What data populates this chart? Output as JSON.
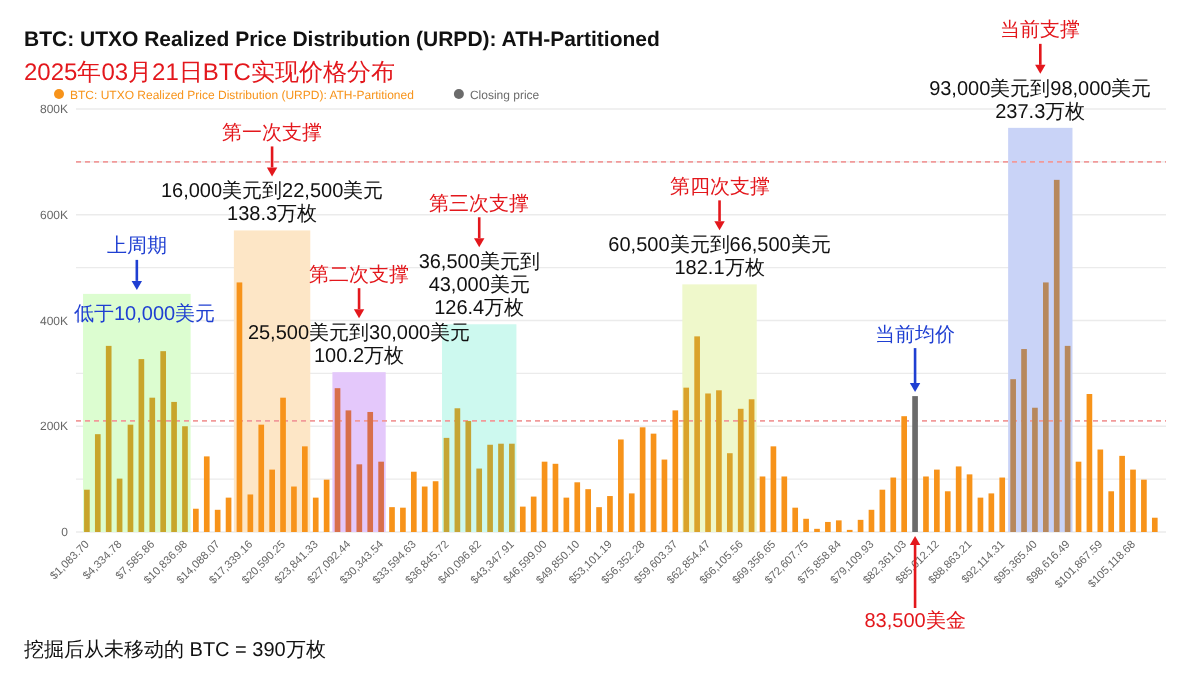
{
  "chart_data": {
    "type": "bar",
    "title": "BTC: UTXO Realized Price Distribution (URPD): ATH-Partitioned",
    "subtitle": "2025年03月21日BTC实现价格分布",
    "series": [
      {
        "name": "BTC: UTXO Realized Price Distribution (URPD): ATH-Partitioned",
        "color": "#f7931a",
        "x": [
          1084,
          2167,
          3251,
          4335,
          5418,
          6502,
          7586,
          8670,
          9753,
          10837,
          11921,
          13004,
          14088,
          15172,
          16255,
          17339,
          18423,
          19507,
          20590,
          21674,
          22758,
          23841,
          24925,
          26009,
          27092,
          28176,
          29260,
          30344,
          31427,
          32511,
          33595,
          34678,
          35762,
          36846,
          37929,
          39013,
          40097,
          41181,
          42264,
          43348,
          44432,
          45515,
          46599,
          47683,
          48766,
          49850,
          50934,
          52018,
          53101,
          54185,
          55269,
          56352,
          57436,
          58520,
          59603,
          60687,
          61771,
          62855,
          63938,
          65022,
          66106,
          67189,
          68273,
          69357,
          70441,
          71524,
          72608,
          73692,
          74775,
          75859,
          76943,
          78026,
          79110,
          80194,
          81277,
          82361,
          84529,
          85612,
          86696,
          87780,
          88863,
          89947,
          91031,
          92114,
          93198,
          94282,
          95365,
          96449,
          97533,
          98616,
          99700,
          100784,
          101868,
          102951,
          104035,
          105119,
          106202,
          107286
        ],
        "colors": [
          "#c8a52b",
          "#c8a52b",
          "#c8a52b",
          "#c8a52b",
          "#c8a52b",
          "#c8a52b",
          "#c8a52b",
          "#c8a52b",
          "#c8a52b",
          "#c8a52b",
          "#f7931a",
          "#f7931a",
          "#f7931a",
          "#f7931a",
          "#f7931a",
          "#f7931a",
          "#f7931a",
          "#f7931a",
          "#f7931a",
          "#f7931a",
          "#f7931a",
          "#f7931a",
          "#f7931a",
          "#d86f4b",
          "#d86f4b",
          "#d86f4b",
          "#d86f4b",
          "#d86f4b",
          "#f7931a",
          "#f7931a",
          "#f7931a",
          "#f7931a",
          "#f7931a",
          "#c5a535",
          "#c5a535",
          "#c5a535",
          "#c5a535",
          "#c5a535",
          "#c5a535",
          "#c5a535",
          "#f7931a",
          "#f7931a",
          "#f7931a",
          "#f7931a",
          "#f7931a",
          "#f7931a",
          "#f7931a",
          "#f7931a",
          "#f7931a",
          "#f7931a",
          "#f7931a",
          "#f7931a",
          "#f7931a",
          "#f7931a",
          "#f7931a",
          "#daa32b",
          "#daa32b",
          "#daa32b",
          "#daa32b",
          "#daa32b",
          "#daa32b",
          "#daa32b",
          "#f7931a",
          "#f7931a",
          "#f7931a",
          "#f7931a",
          "#f7931a",
          "#f7931a",
          "#f7931a",
          "#f7931a",
          "#f7931a",
          "#f7931a",
          "#f7931a",
          "#f7931a",
          "#f7931a",
          "#f7931a",
          "#f7931a",
          "#f7931a",
          "#f7931a",
          "#f7931a",
          "#f7931a",
          "#f7931a",
          "#f7931a",
          "#f7931a",
          "#b7885c",
          "#b7885c",
          "#b7885c",
          "#b7885c",
          "#b7885c",
          "#b7885c",
          "#f7931a",
          "#f7931a",
          "#f7931a",
          "#f7931a",
          "#f7931a",
          "#f7931a",
          "#f7931a",
          "#f7931a"
        ],
        "values": [
          80000,
          185000,
          352000,
          101000,
          203000,
          327000,
          254000,
          342000,
          246000,
          200000,
          44000,
          143000,
          42000,
          65000,
          472000,
          71000,
          203000,
          118000,
          254000,
          86000,
          162000,
          65000,
          99000,
          272000,
          230000,
          128000,
          227000,
          133000,
          47000,
          46000,
          114000,
          86000,
          96000,
          178000,
          234000,
          210000,
          120000,
          165000,
          167000,
          167000,
          48000,
          67000,
          133000,
          129000,
          65000,
          94000,
          81000,
          47000,
          68000,
          175000,
          73000,
          198000,
          186000,
          137000,
          230000,
          273000,
          370000,
          262000,
          268000,
          149000,
          233000,
          251000,
          105000,
          162000,
          105000,
          46000,
          25000,
          6000,
          19000,
          22000,
          4000,
          23000,
          42000,
          80000,
          103000,
          219000,
          105000,
          118000,
          77000,
          124000,
          109000,
          65000,
          73000,
          103000,
          289000,
          346000,
          235000,
          472000,
          666000,
          352000,
          133000,
          261000,
          156000,
          77000,
          144000,
          118000,
          99000,
          27000
        ]
      },
      {
        "name": "Closing price",
        "color": "#6b6b6b",
        "x": [
          83445
        ],
        "values": [
          257000
        ]
      }
    ],
    "xlim": [
      0,
      108400
    ],
    "xticks": [
      {
        "value": 1083.7,
        "label": "$1,083.70"
      },
      {
        "value": 4334.78,
        "label": "$4,334.78"
      },
      {
        "value": 7585.86,
        "label": "$7,585.86"
      },
      {
        "value": 10836.98,
        "label": "$10,836.98"
      },
      {
        "value": 14088.07,
        "label": "$14,088.07"
      },
      {
        "value": 17339.16,
        "label": "$17,339.16"
      },
      {
        "value": 20590.25,
        "label": "$20,590.25"
      },
      {
        "value": 23841.33,
        "label": "$23,841.33"
      },
      {
        "value": 27092.44,
        "label": "$27,092.44"
      },
      {
        "value": 30343.54,
        "label": "$30,343.54"
      },
      {
        "value": 33594.63,
        "label": "$33,594.63"
      },
      {
        "value": 36845.72,
        "label": "$36,845.72"
      },
      {
        "value": 40096.82,
        "label": "$40,096.82"
      },
      {
        "value": 43347.91,
        "label": "$43,347.91"
      },
      {
        "value": 46599,
        "label": "$46,599.00"
      },
      {
        "value": 49850.1,
        "label": "$49,850.10"
      },
      {
        "value": 53101.19,
        "label": "$53,101.19"
      },
      {
        "value": 56352.28,
        "label": "$56,352.28"
      },
      {
        "value": 59603.37,
        "label": "$59,603.37"
      },
      {
        "value": 62854.47,
        "label": "$62,854.47"
      },
      {
        "value": 66105.56,
        "label": "$66,105.56"
      },
      {
        "value": 69356.65,
        "label": "$69,356.65"
      },
      {
        "value": 72607.75,
        "label": "$72,607.75"
      },
      {
        "value": 75858.84,
        "label": "$75,858.84"
      },
      {
        "value": 79109.93,
        "label": "$79,109.93"
      },
      {
        "value": 82361.03,
        "label": "$82,361.03"
      },
      {
        "value": 85612.12,
        "label": "$85,612.12"
      },
      {
        "value": 88863.21,
        "label": "$88,863.21"
      },
      {
        "value": 92114.31,
        "label": "$92,114.31"
      },
      {
        "value": 95365.4,
        "label": "$95,365.40"
      },
      {
        "value": 98616.49,
        "label": "$98,616.49"
      },
      {
        "value": 101867.59,
        "label": "$101,867.59"
      },
      {
        "value": 105118.68,
        "label": "$105,118.68"
      }
    ],
    "ylim": [
      0,
      800000
    ],
    "yticks": [
      0,
      {
        "value": 100000,
        "label": null
      },
      {
        "value": 200000,
        "label": "200K"
      },
      {
        "value": 300000,
        "label": null
      },
      {
        "value": 400000,
        "label": "400K"
      },
      {
        "value": 500000,
        "label": null
      },
      {
        "value": 600000,
        "label": "600K"
      },
      {
        "value": 700000,
        "label": null
      },
      {
        "value": 800000,
        "label": "800K"
      }
    ],
    "grid": "y",
    "legend": "top left",
    "bands": [
      {
        "axis": "x",
        "from": 700,
        "to": 11400,
        "color": "#dcfdd0"
      },
      {
        "axis": "x",
        "from": 15700,
        "to": 23300,
        "color": "#fde6c6",
        "label": "16,000美元到22,500美元\n138.3万枚"
      },
      {
        "axis": "x",
        "from": 25500,
        "to": 30800,
        "color": "#e4c8fb",
        "label": "25,500美元到30,000美元\n100.2万枚"
      },
      {
        "axis": "x",
        "from": 36400,
        "to": 43800,
        "color": "#cdf9ef",
        "label": "36,500美元到43,000美元\n126.4万枚"
      },
      {
        "axis": "x",
        "from": 60300,
        "to": 67700,
        "color": "#eff8cb",
        "label": "60,500美元到66,500美元\n182.1万枚"
      },
      {
        "axis": "x",
        "from": 92700,
        "to": 99100,
        "color": "#c9d3f7",
        "label": "93,000美元到98,000美元\n237.3万枚"
      }
    ],
    "ref_lines": [
      {
        "axis": "y",
        "value": 700000,
        "color": "#f19a9a",
        "line_style": "dashed"
      },
      {
        "axis": "y",
        "value": 210000,
        "color": "#f19a9a",
        "line_style": "dashed"
      }
    ],
    "annotations": [
      "上周期",
      "低于10,000美元",
      "第一次支撑",
      "第二次支撑",
      "第三次支撑",
      "第四次支撑",
      {
        "text": "当前均价",
        "x": 83445,
        "y": 257000
      },
      {
        "text": "83,500美金",
        "x": 83445,
        "y": 0
      },
      "当前支撑",
      "挖掘后从未移动的 BTC = 390万枚"
    ]
  }
}
